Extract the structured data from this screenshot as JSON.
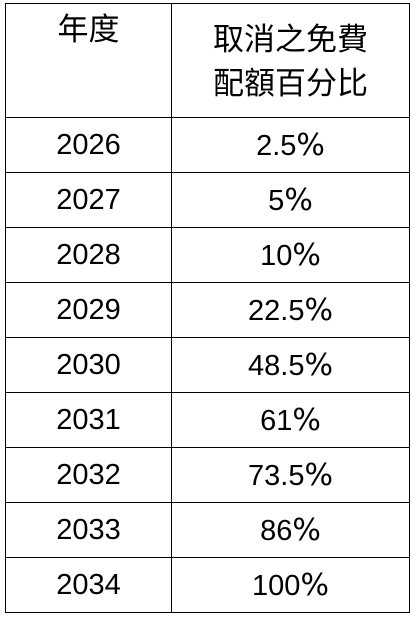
{
  "table": {
    "headers": {
      "year": "年度",
      "percentage_line1": "取消之免費",
      "percentage_line2": "配額百分比"
    },
    "percent_sign": "%",
    "rows": [
      {
        "year": "2026",
        "value": "2.5"
      },
      {
        "year": "2027",
        "value": "5"
      },
      {
        "year": "2028",
        "value": "10"
      },
      {
        "year": "2029",
        "value": "22.5"
      },
      {
        "year": "2030",
        "value": "48.5"
      },
      {
        "year": "2031",
        "value": "61"
      },
      {
        "year": "2032",
        "value": "73.5"
      },
      {
        "year": "2033",
        "value": "86"
      },
      {
        "year": "2034",
        "value": "100"
      }
    ]
  }
}
